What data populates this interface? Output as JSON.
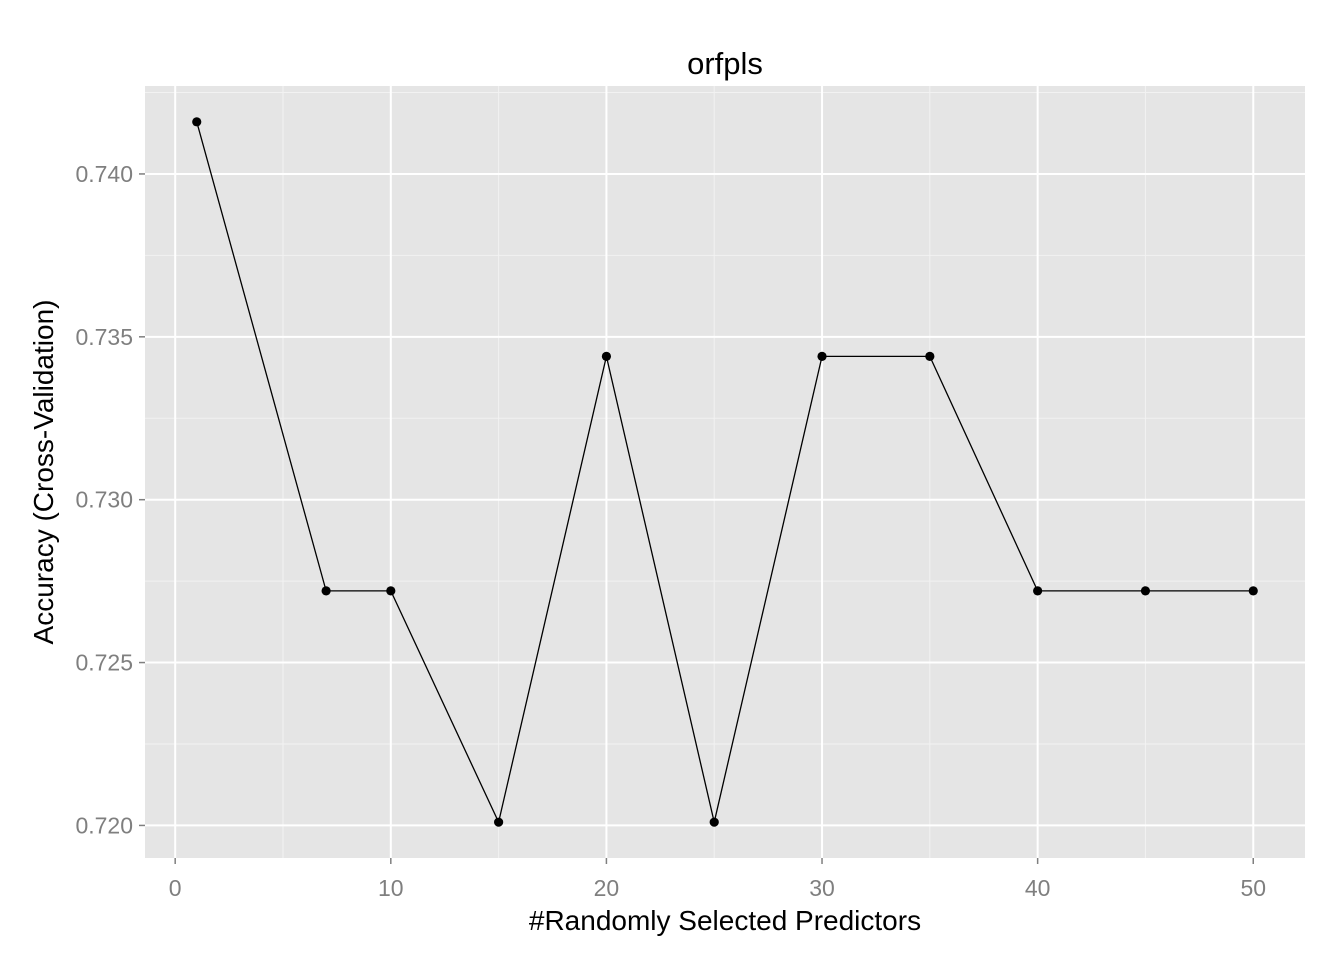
{
  "chart_data": {
    "type": "line",
    "title": "orfpls",
    "xlabel": "#Randomly Selected Predictors",
    "ylabel": "Accuracy (Cross-Validation)",
    "xlim": [
      -1.4,
      52.4
    ],
    "ylim": [
      0.719,
      0.7427
    ],
    "x_ticks": [
      0,
      10,
      20,
      30,
      40,
      50
    ],
    "x_tick_labels": [
      "0",
      "10",
      "20",
      "30",
      "40",
      "50"
    ],
    "y_ticks": [
      0.72,
      0.725,
      0.73,
      0.735,
      0.74
    ],
    "y_tick_labels": [
      "0.720",
      "0.725",
      "0.730",
      "0.735",
      "0.740"
    ],
    "grid": true,
    "series": [
      {
        "x": [
          1,
          7,
          10,
          15,
          20,
          25,
          30,
          35,
          40,
          45,
          50
        ],
        "y": [
          0.7416,
          0.7272,
          0.7272,
          0.7201,
          0.7344,
          0.7201,
          0.7344,
          0.7344,
          0.7272,
          0.7272,
          0.7272
        ]
      }
    ],
    "colors": {
      "panel_background": "#e5e5e5",
      "grid_major": "#ffffff",
      "grid_minor": "#f2f2f2",
      "line": "#000000",
      "point": "#000000",
      "tick_label": "#7f7f7f"
    }
  }
}
